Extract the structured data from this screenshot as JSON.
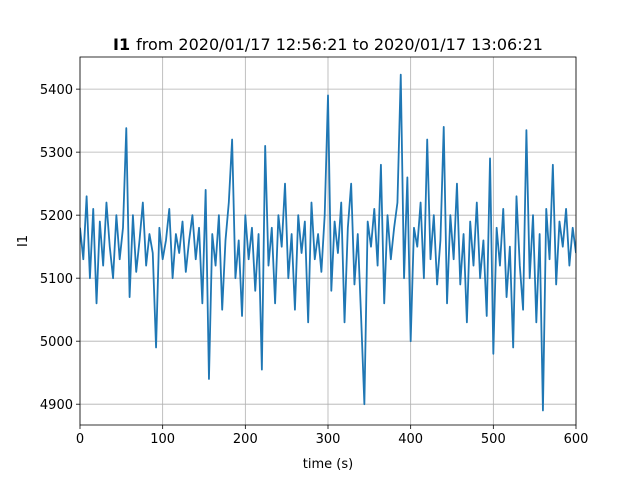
{
  "chart_data": {
    "type": "line",
    "title_bold": "I1",
    "title": "from 2020/01/17 12:56:21 to 2020/01/17 13:06:21",
    "xlabel": "time (s)",
    "ylabel": "I1",
    "color": "#1f77b4",
    "grid": true,
    "xlim": [
      0,
      600
    ],
    "xticks": [
      0,
      100,
      200,
      300,
      400,
      500,
      600
    ],
    "ylim": [
      4867,
      5451
    ],
    "yticks": [
      4900,
      5000,
      5100,
      5200,
      5300,
      5400
    ],
    "x": [
      0,
      4,
      8,
      12,
      16,
      20,
      24,
      28,
      32,
      36,
      40,
      44,
      48,
      52,
      56,
      60,
      64,
      68,
      72,
      76,
      80,
      84,
      88,
      92,
      96,
      100,
      104,
      108,
      112,
      116,
      120,
      124,
      128,
      132,
      136,
      140,
      144,
      148,
      152,
      156,
      160,
      164,
      168,
      172,
      176,
      180,
      184,
      188,
      192,
      196,
      200,
      204,
      208,
      212,
      216,
      220,
      224,
      228,
      232,
      236,
      240,
      244,
      248,
      252,
      256,
      260,
      264,
      268,
      272,
      276,
      280,
      284,
      288,
      292,
      296,
      300,
      304,
      308,
      312,
      316,
      320,
      324,
      328,
      332,
      336,
      340,
      344,
      348,
      352,
      356,
      360,
      364,
      368,
      372,
      376,
      380,
      384,
      388,
      392,
      396,
      400,
      404,
      408,
      412,
      416,
      420,
      424,
      428,
      432,
      436,
      440,
      444,
      448,
      452,
      456,
      460,
      464,
      468,
      472,
      476,
      480,
      484,
      488,
      492,
      496,
      500,
      504,
      508,
      512,
      516,
      520,
      524,
      528,
      532,
      536,
      540,
      544,
      548,
      552,
      556,
      560,
      564,
      568,
      572,
      576,
      580,
      584,
      588,
      592,
      596,
      600
    ],
    "values": [
      5180,
      5130,
      5230,
      5100,
      5210,
      5060,
      5190,
      5120,
      5220,
      5150,
      5100,
      5200,
      5130,
      5180,
      5338,
      5070,
      5200,
      5110,
      5160,
      5220,
      5120,
      5170,
      5140,
      4990,
      5180,
      5130,
      5160,
      5210,
      5100,
      5170,
      5140,
      5190,
      5110,
      5160,
      5200,
      5130,
      5180,
      5060,
      5240,
      4940,
      5170,
      5120,
      5200,
      5050,
      5160,
      5220,
      5320,
      5100,
      5160,
      5040,
      5200,
      5130,
      5180,
      5080,
      5170,
      4955,
      5310,
      5120,
      5180,
      5060,
      5200,
      5150,
      5250,
      5100,
      5170,
      5050,
      5200,
      5140,
      5190,
      5030,
      5220,
      5130,
      5170,
      5110,
      5200,
      5390,
      5080,
      5190,
      5140,
      5220,
      5030,
      5180,
      5250,
      5090,
      5170,
      5040,
      4900,
      5190,
      5150,
      5210,
      5120,
      5280,
      5060,
      5200,
      5130,
      5180,
      5220,
      5423,
      5100,
      5260,
      5000,
      5180,
      5150,
      5220,
      5100,
      5320,
      5130,
      5200,
      5090,
      5160,
      5340,
      5060,
      5200,
      5130,
      5250,
      5090,
      5170,
      5030,
      5190,
      5120,
      5220,
      5100,
      5160,
      5040,
      5290,
      4980,
      5180,
      5120,
      5210,
      5070,
      5150,
      4990,
      5230,
      5120,
      5050,
      5335,
      5100,
      5200,
      5030,
      5170,
      4890,
      5210,
      5130,
      5280,
      5090,
      5190,
      5150,
      5210,
      5120,
      5180,
      5140
    ]
  }
}
